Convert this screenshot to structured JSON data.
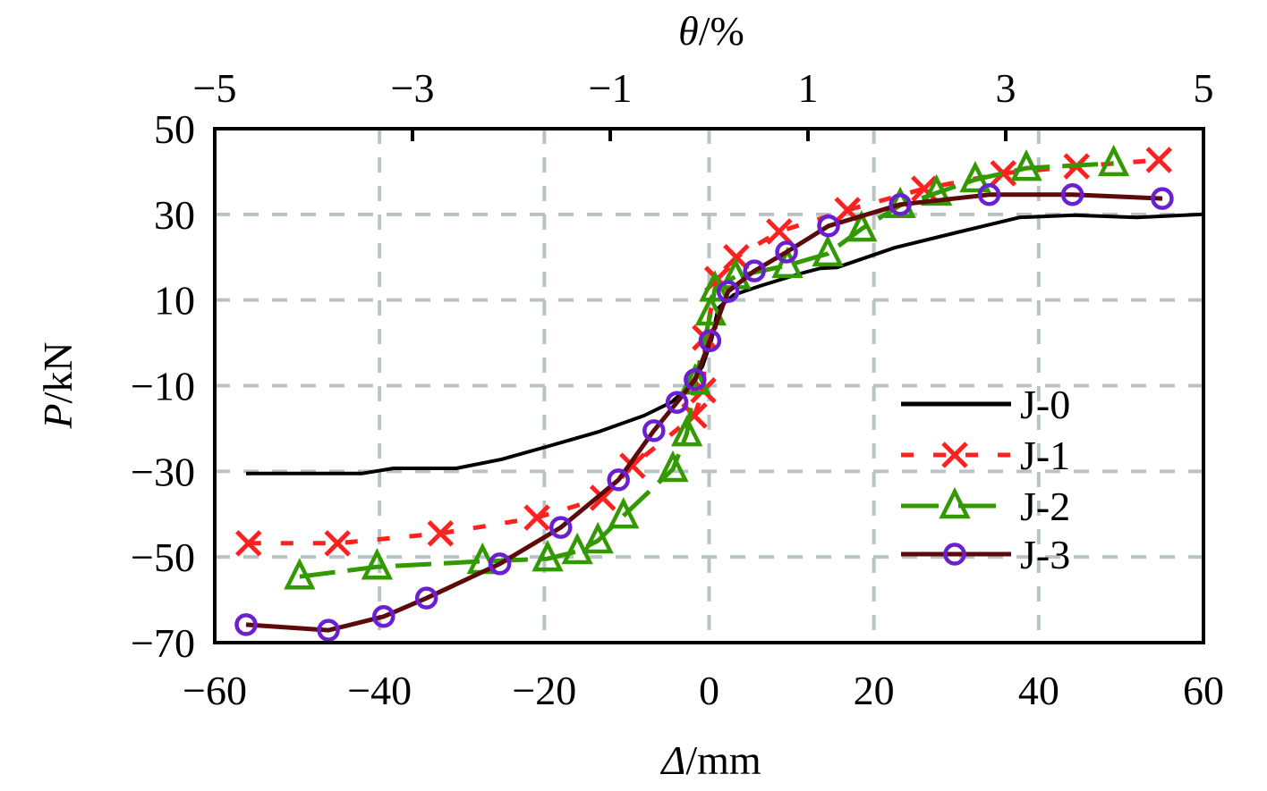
{
  "chart_data": {
    "type": "line",
    "title": "",
    "xlabel_italic": "Δ",
    "xlabel_unit": "/mm",
    "ylabel_italic": "P",
    "ylabel_unit": "/kN",
    "x2label_italic": "θ",
    "x2label_unit": "/%",
    "xlim": [
      -60,
      60
    ],
    "ylim": [
      -70,
      50
    ],
    "x2lim": [
      -5,
      5
    ],
    "xticks": [
      -60,
      -40,
      -20,
      0,
      20,
      40,
      60
    ],
    "xtick_labels": [
      "−60",
      "−40",
      "−20",
      "0",
      "20",
      "40",
      "60"
    ],
    "yticks": [
      50,
      30,
      10,
      -10,
      -30,
      -50,
      -70
    ],
    "ytick_labels": [
      "50",
      "30",
      "10",
      "−10",
      "−30",
      "−50",
      "−70"
    ],
    "x2ticks": [
      -5,
      -3,
      -1,
      1,
      3,
      5
    ],
    "x2tick_labels": [
      "−5",
      "−3",
      "−1",
      "1",
      "3",
      "5"
    ],
    "grid": true,
    "grid_x": [
      -40,
      -20,
      0,
      20,
      40
    ],
    "grid_y": [
      30,
      10,
      -10,
      -30,
      -50
    ],
    "grid_color": "#b8c4c4",
    "legend_position": "center-right",
    "series": [
      {
        "name": "J-0",
        "color": "#000000",
        "style": "solid",
        "marker": "none",
        "x": [
          -56.2,
          -42.1,
          -38.3,
          -30.7,
          -25.2,
          -19.8,
          -13.3,
          -7.9,
          -4.6,
          -2.4,
          -0.8,
          0.3,
          1.1,
          3.0,
          6.2,
          11.1,
          13.5,
          15.5,
          22.5,
          30.1,
          37.7,
          44.3,
          51.9,
          60.0
        ],
        "y": [
          -30.5,
          -30.5,
          -29.3,
          -29.3,
          -27.2,
          -24.3,
          -20.7,
          -17.0,
          -13.9,
          -10.1,
          -5.5,
          0.8,
          8.1,
          11.2,
          13.3,
          16.2,
          17.4,
          17.6,
          22.2,
          25.8,
          29.3,
          29.8,
          29.3,
          30.0
        ]
      },
      {
        "name": "J-1",
        "color": "#ff2020",
        "style": "dashed",
        "marker": "x",
        "x": [
          -55.9,
          -45.1,
          -32.6,
          -20.9,
          -12.9,
          -9.3,
          -1.8,
          -0.7,
          -0.5,
          1.0,
          3.3,
          8.5,
          16.8,
          26.1,
          35.7,
          44.6,
          54.6
        ],
        "y": [
          -46.8,
          -46.8,
          -44.5,
          -40.8,
          -36.2,
          -28.7,
          -17.0,
          -11.1,
          1.2,
          14.9,
          20.0,
          26.0,
          31.0,
          36.0,
          39.6,
          41.2,
          42.7
        ]
      },
      {
        "name": "J-2",
        "color": "#339900",
        "style": "long-dash",
        "marker": "triangle",
        "x": [
          -49.7,
          -40.3,
          -27.5,
          -19.6,
          -16.0,
          -13.5,
          -10.4,
          -4.4,
          -2.7,
          -1.7,
          0.2,
          0.7,
          3.2,
          9.5,
          14.4,
          18.5,
          23.2,
          27.6,
          32.3,
          38.5,
          49.1
        ],
        "y": [
          -54.6,
          -52.3,
          -51.0,
          -50.4,
          -48.7,
          -46.2,
          -40.4,
          -29.5,
          -21.2,
          -9.1,
          7.0,
          12.6,
          15.5,
          18.1,
          20.8,
          26.6,
          32.1,
          35.0,
          38.1,
          40.8,
          41.9
        ]
      },
      {
        "name": "J-3",
        "color": "#5c0a0a",
        "marker_color": "#6a1fd0",
        "style": "solid",
        "marker": "circle",
        "x": [
          -56.2,
          -46.2,
          -39.5,
          -34.3,
          -25.4,
          -18.0,
          -11.0,
          -6.7,
          -3.9,
          -1.7,
          0.1,
          2.3,
          5.5,
          9.4,
          14.5,
          23.2,
          34.0,
          44.1,
          55.0
        ],
        "y": [
          -65.8,
          -67.1,
          -63.9,
          -59.6,
          -51.6,
          -43.1,
          -32.0,
          -20.5,
          -13.9,
          -8.6,
          0.5,
          12.0,
          16.8,
          21.2,
          27.3,
          32.3,
          34.6,
          34.6,
          33.7
        ]
      }
    ]
  }
}
